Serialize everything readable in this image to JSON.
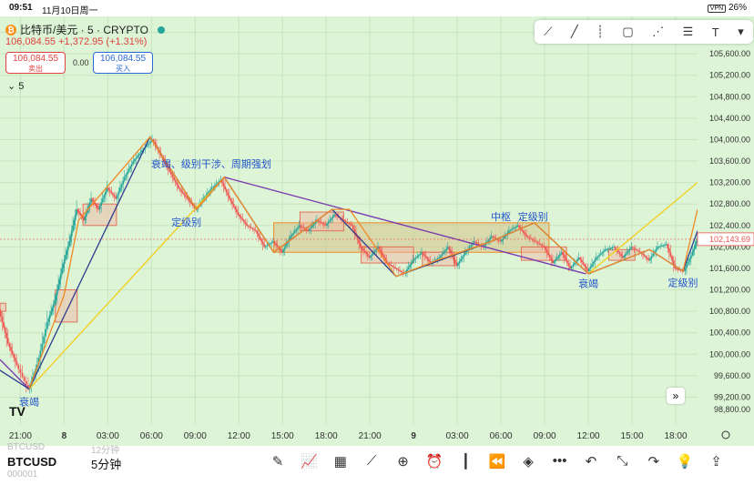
{
  "status_bar": {
    "time": "09:51",
    "date": "11月10日周一",
    "battery": "26%",
    "vpn": "VPN"
  },
  "header": {
    "symbol": "比特币/美元 · 5 · CRYPTO",
    "coin_glyph": "₿",
    "last": "106,084.55",
    "change": "+1,372.95 (+1.31%)",
    "sell_price": "106,084.55",
    "sell_label": "卖出",
    "buy_price": "106,084.55",
    "buy_label": "买入",
    "spread": "0.00",
    "interval_toggle": "5"
  },
  "toolbar_icons": [
    "trend-line-icon",
    "line-icon",
    "vertical-line-icon",
    "rectangle-icon",
    "path-icon",
    "fib-icon",
    "text-icon",
    "color-icon"
  ],
  "logo": "TV",
  "colors": {
    "background": "#ddf4d6",
    "up": "#26a69a",
    "down": "#ef5350",
    "purple": "#7b3fb0",
    "orange": "#f08a24",
    "navy": "#2c3d8f",
    "yellow": "#f2d023",
    "box_fill": "#d4c38a",
    "label_blue": "#2255cc"
  },
  "chart_data": {
    "type": "line",
    "title": "比特币/美元 · 5 · CRYPTO",
    "ylim": [
      98800,
      106400
    ],
    "y_ticks": [
      99200,
      99600,
      100000,
      100400,
      100800,
      101200,
      101600,
      102000,
      102400,
      102800,
      103200,
      103600,
      104000,
      104400,
      104800,
      105200,
      105600,
      106000
    ],
    "y_tick_labels": [
      "99,200.00",
      "99,600.00",
      "100,000.00",
      "100,400.00",
      "100,800.00",
      "101,200.00",
      "101,600.00",
      "102,000.00",
      "102,400.00",
      "102,800.00",
      "103,200.00",
      "103,600.00",
      "104,000.00",
      "104,400.00",
      "104,800.00",
      "105,200.00",
      "105,600.00",
      "106,000.00"
    ],
    "y_bottom_label": "98,800.00",
    "x_ticks": [
      {
        "t": 21,
        "label": "21:00"
      },
      {
        "t": 24,
        "label": "8"
      },
      {
        "t": 27,
        "label": "03:00"
      },
      {
        "t": 30,
        "label": "06:00"
      },
      {
        "t": 33,
        "label": "09:00"
      },
      {
        "t": 36,
        "label": "12:00"
      },
      {
        "t": 39,
        "label": "15:00"
      },
      {
        "t": 42,
        "label": "18:00"
      },
      {
        "t": 45,
        "label": "21:00"
      },
      {
        "t": 48,
        "label": "9"
      },
      {
        "t": 51,
        "label": "03:00"
      },
      {
        "t": 54,
        "label": "06:00"
      },
      {
        "t": 57,
        "label": "09:00"
      },
      {
        "t": 60,
        "label": "12:00"
      },
      {
        "t": 63,
        "label": "15:00"
      },
      {
        "t": 66,
        "label": "18:00"
      }
    ],
    "x_range": [
      19.6,
      67.5
    ],
    "current_price": {
      "value": 102143.69,
      "label": "102,143.69"
    },
    "price_path": [
      [
        19.6,
        100800
      ],
      [
        20.2,
        100200
      ],
      [
        20.8,
        99800
      ],
      [
        21.6,
        99350
      ],
      [
        22.2,
        99800
      ],
      [
        22.9,
        100600
      ],
      [
        23.4,
        101000
      ],
      [
        23.9,
        101600
      ],
      [
        24.4,
        102100
      ],
      [
        24.9,
        102700
      ],
      [
        25.4,
        102500
      ],
      [
        25.9,
        102900
      ],
      [
        26.4,
        102700
      ],
      [
        27.0,
        103100
      ],
      [
        27.6,
        102900
      ],
      [
        28.2,
        103300
      ],
      [
        28.8,
        103600
      ],
      [
        29.4,
        103800
      ],
      [
        30.1,
        104000
      ],
      [
        30.7,
        103700
      ],
      [
        31.3,
        103400
      ],
      [
        31.9,
        103100
      ],
      [
        32.5,
        102900
      ],
      [
        33.1,
        102700
      ],
      [
        33.6,
        102900
      ],
      [
        34.2,
        103100
      ],
      [
        34.8,
        103250
      ],
      [
        35.4,
        102900
      ],
      [
        36.0,
        102600
      ],
      [
        36.6,
        102400
      ],
      [
        37.2,
        102300
      ],
      [
        37.8,
        102000
      ],
      [
        38.4,
        102100
      ],
      [
        39.0,
        101900
      ],
      [
        39.6,
        102200
      ],
      [
        40.2,
        102400
      ],
      [
        40.8,
        102300
      ],
      [
        41.4,
        102500
      ],
      [
        42.0,
        102400
      ],
      [
        42.6,
        102600
      ],
      [
        43.2,
        102500
      ],
      [
        43.8,
        102400
      ],
      [
        44.4,
        102000
      ],
      [
        45.0,
        101800
      ],
      [
        45.6,
        102000
      ],
      [
        46.2,
        101700
      ],
      [
        46.8,
        101600
      ],
      [
        47.4,
        101500
      ],
      [
        48.0,
        101750
      ],
      [
        48.6,
        101900
      ],
      [
        49.2,
        101700
      ],
      [
        49.8,
        101800
      ],
      [
        50.4,
        102000
      ],
      [
        51.0,
        101650
      ],
      [
        51.6,
        101900
      ],
      [
        52.2,
        102100
      ],
      [
        52.8,
        102000
      ],
      [
        53.4,
        102200
      ],
      [
        54.0,
        102100
      ],
      [
        54.6,
        102300
      ],
      [
        55.2,
        102400
      ],
      [
        55.8,
        102200
      ],
      [
        56.4,
        102100
      ],
      [
        57.0,
        102000
      ],
      [
        57.6,
        101700
      ],
      [
        58.2,
        101900
      ],
      [
        58.8,
        101600
      ],
      [
        59.4,
        101800
      ],
      [
        60.0,
        101550
      ],
      [
        60.6,
        101800
      ],
      [
        61.2,
        101950
      ],
      [
        61.8,
        102000
      ],
      [
        62.4,
        101800
      ],
      [
        63.0,
        102000
      ],
      [
        63.6,
        101900
      ],
      [
        64.2,
        101750
      ],
      [
        64.8,
        102000
      ],
      [
        65.4,
        102050
      ],
      [
        66.0,
        101600
      ],
      [
        66.6,
        101550
      ],
      [
        67.2,
        101900
      ],
      [
        67.5,
        102143.69
      ]
    ],
    "zigzag_orange": [
      [
        21.6,
        99350
      ],
      [
        24.0,
        101100
      ],
      [
        25.0,
        102500
      ],
      [
        29.9,
        104050
      ],
      [
        33.1,
        102700
      ],
      [
        35.0,
        103300
      ],
      [
        38.4,
        101900
      ],
      [
        42.4,
        102700
      ],
      [
        43.6,
        102700
      ],
      [
        46.8,
        101450
      ],
      [
        49.6,
        101750
      ],
      [
        53.3,
        102100
      ],
      [
        56.3,
        102450
      ],
      [
        60.0,
        101500
      ],
      [
        64.2,
        101950
      ],
      [
        66.5,
        101550
      ],
      [
        67.5,
        102700
      ]
    ],
    "zigzag_navy": [
      [
        19.6,
        99700
      ],
      [
        21.6,
        99350
      ],
      [
        29.9,
        104050
      ],
      [
        33.1,
        102700
      ],
      [
        35.0,
        103300
      ],
      [
        38.4,
        101900
      ],
      [
        42.4,
        102700
      ],
      [
        46.8,
        101450
      ],
      [
        53.3,
        102100
      ],
      [
        56.3,
        102450
      ],
      [
        60.0,
        101500
      ],
      [
        64.2,
        101950
      ],
      [
        66.5,
        101550
      ],
      [
        67.5,
        102300
      ]
    ],
    "purple_lines": [
      [
        [
          19.6,
          99900
        ],
        [
          21.6,
          99350
        ]
      ],
      [
        [
          35.0,
          103300
        ],
        [
          59.8,
          101500
        ]
      ]
    ],
    "yellow_lines": [
      [
        [
          21.6,
          99350
        ],
        [
          35.0,
          103300
        ]
      ],
      [
        [
          60.0,
          101500
        ],
        [
          67.5,
          103200
        ]
      ]
    ],
    "zones": [
      {
        "t0": 38.4,
        "t1": 57.3,
        "low": 101900,
        "high": 102450,
        "kind": "orange"
      },
      {
        "t0": 19.6,
        "t1": 20.0,
        "low": 100800,
        "high": 100950,
        "kind": "red"
      },
      {
        "t0": 23.4,
        "t1": 24.9,
        "low": 100600,
        "high": 101200,
        "kind": "red"
      },
      {
        "t0": 25.3,
        "t1": 27.6,
        "low": 102400,
        "high": 102800,
        "kind": "red"
      },
      {
        "t0": 40.2,
        "t1": 43.2,
        "low": 102300,
        "high": 102650,
        "kind": "red"
      },
      {
        "t0": 44.4,
        "t1": 48.0,
        "low": 101700,
        "high": 102000,
        "kind": "red"
      },
      {
        "t0": 48.6,
        "t1": 50.8,
        "low": 101650,
        "high": 101900,
        "kind": "red"
      },
      {
        "t0": 55.4,
        "t1": 58.5,
        "low": 101750,
        "high": 102000,
        "kind": "red"
      },
      {
        "t0": 61.4,
        "t1": 63.2,
        "low": 101750,
        "high": 101950,
        "kind": "red"
      }
    ],
    "annotations": [
      {
        "text": "衰竭、级别干涉、周期强划",
        "t": 34.1,
        "y": 103480
      },
      {
        "text": "定级别",
        "t": 32.4,
        "y": 102400
      },
      {
        "text": "衰竭",
        "t": 21.6,
        "y": 99050
      },
      {
        "text": "中枢",
        "t": 54.0,
        "y": 102500
      },
      {
        "text": "定级别",
        "t": 56.2,
        "y": 102500
      },
      {
        "text": "衰竭",
        "t": 60.0,
        "y": 101250
      },
      {
        "text": "定级别",
        "t": 66.5,
        "y": 101270
      }
    ]
  },
  "bottom_bar": {
    "symbol": "BTCUSD",
    "interval": "5分钟",
    "ghost_symbol": "BTCUSD",
    "ghost_interval": "12分钟",
    "ghost_code": "000001",
    "tools": [
      {
        "name": "pen-icon",
        "glyph": "✎"
      },
      {
        "name": "indicator-icon",
        "glyph": "📈"
      },
      {
        "name": "grid-icon",
        "glyph": "▦"
      },
      {
        "name": "strategy-icon",
        "glyph": "⟋"
      },
      {
        "name": "add-icon",
        "glyph": "⊕"
      },
      {
        "name": "alarm-icon",
        "glyph": "⏰"
      },
      {
        "name": "candle-icon",
        "glyph": "┃"
      },
      {
        "name": "replay-icon",
        "glyph": "⏪"
      },
      {
        "name": "layers-icon",
        "glyph": "◈"
      },
      {
        "name": "more-icon",
        "glyph": "•••"
      },
      {
        "name": "undo-icon",
        "glyph": "↶"
      },
      {
        "name": "collapse-icon",
        "glyph": "⤡"
      },
      {
        "name": "redo-icon",
        "glyph": "↷"
      },
      {
        "name": "idea-icon",
        "glyph": "💡"
      },
      {
        "name": "share-icon",
        "glyph": "⇪"
      }
    ]
  }
}
